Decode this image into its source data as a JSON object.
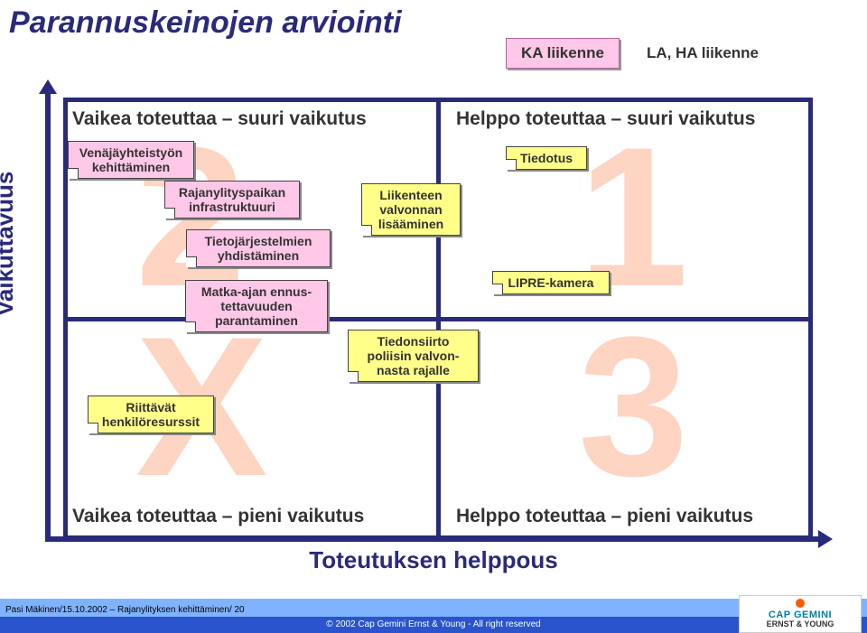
{
  "title": "Parannuskeinojen arviointi",
  "legend": {
    "box1": "KA liikenne",
    "label2": "LA, HA liikenne"
  },
  "axes": {
    "y": "Vaikuttavuus",
    "x": "Toteutuksen helppous"
  },
  "quadrants": {
    "tl": "Vaikea toteuttaa – suuri vaikutus",
    "tr": "Helppo toteuttaa – suuri vaikutus",
    "bl": "Vaikea toteuttaa – pieni vaikutus",
    "br": "Helppo toteuttaa – pieni vaikutus"
  },
  "ghosts": {
    "q1": "1",
    "q2": "2",
    "q3": "3",
    "qX": "X"
  },
  "notes": {
    "n1": "Venäjäyhteistyön kehittäminen",
    "n2": "Rajanylityspaikan infrastruktuuri",
    "n3": "Tietojärjestelmien yhdistäminen",
    "n4": "Matka-ajan ennus-\ntettavuuden\nparantaminen",
    "n5": "Liikenteen valvonnan lisääminen",
    "n6": "Tiedonsiirto poliisin valvon-\nnasta rajalle",
    "n7": "Tiedotus",
    "n8": "LIPRE-kamera",
    "n9": "Riittävät henkilöresurssit"
  },
  "footer": {
    "left": "Pasi Mäkinen/15.10.2002 – Rajanylityksen kehittäminen/ 20",
    "center": "© 2002 Cap Gemini Ernst & Young - All right reserved",
    "logo1": "CAP GEMINI",
    "logo2": "ERNST & YOUNG"
  },
  "colors": {
    "accent": "#2a2a7a",
    "ghost": "#fed4c2",
    "note_pink": "#ffc7e8",
    "note_yellow": "#ffff8a",
    "footer_light": "#80b3ff",
    "footer_dark": "#2a54cc"
  }
}
